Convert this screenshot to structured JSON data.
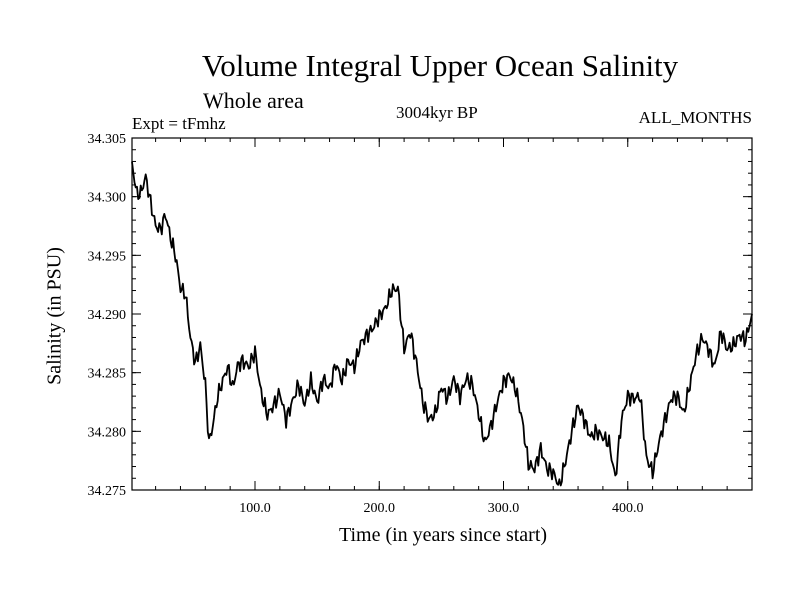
{
  "chart_data": {
    "type": "line",
    "title": "Volume Integral Upper Ocean Salinity",
    "subtitle": "Whole area",
    "info": {
      "experiment": "Expt = tFmhz",
      "period": "3004kyr BP",
      "months": "ALL_MONTHS"
    },
    "xlabel": "Time (in years since start)",
    "ylabel": "Salinity (in PSU)",
    "xlim": [
      1,
      500
    ],
    "ylim": [
      34.275,
      34.305
    ],
    "xticks": [
      100,
      200,
      300,
      400
    ],
    "xtick_labels": [
      "100.0",
      "200.0",
      "300.0",
      "400.0"
    ],
    "yticks": [
      34.275,
      34.28,
      34.285,
      34.29,
      34.295,
      34.3,
      34.305
    ],
    "ytick_labels": [
      "34.275",
      "34.280",
      "34.285",
      "34.290",
      "34.295",
      "34.300",
      "34.305"
    ],
    "series": [
      {
        "name": "Salinity",
        "color": "#000000",
        "x": [
          1,
          5,
          8,
          12,
          16,
          20,
          24,
          28,
          32,
          36,
          40,
          44,
          48,
          52,
          56,
          60,
          63,
          66,
          70,
          74,
          78,
          82,
          86,
          90,
          95,
          100,
          105,
          110,
          115,
          120,
          125,
          130,
          135,
          140,
          145,
          150,
          155,
          160,
          165,
          170,
          175,
          180,
          185,
          190,
          195,
          200,
          205,
          210,
          215,
          220,
          225,
          230,
          235,
          240,
          245,
          250,
          255,
          260,
          265,
          270,
          275,
          280,
          285,
          290,
          295,
          300,
          305,
          310,
          315,
          320,
          325,
          330,
          335,
          340,
          345,
          350,
          355,
          360,
          365,
          370,
          375,
          380,
          385,
          390,
          395,
          400,
          405,
          410,
          415,
          420,
          425,
          430,
          435,
          440,
          445,
          450,
          455,
          460,
          465,
          470,
          475,
          480,
          485,
          490,
          495,
          500
        ],
        "y": [
          34.3028,
          34.3002,
          34.3003,
          34.3017,
          34.2995,
          34.2975,
          34.2972,
          34.2985,
          34.2965,
          34.295,
          34.2922,
          34.2917,
          34.288,
          34.2858,
          34.2873,
          34.284,
          34.279,
          34.2805,
          34.283,
          34.2843,
          34.2855,
          34.2837,
          34.2856,
          34.286,
          34.2855,
          34.2868,
          34.2832,
          34.2814,
          34.2822,
          34.2833,
          34.281,
          34.2825,
          34.284,
          34.2823,
          34.2843,
          34.2825,
          34.2845,
          34.2836,
          34.2858,
          34.2843,
          34.286,
          34.2855,
          34.2875,
          34.2882,
          34.2888,
          34.2898,
          34.2905,
          34.292,
          34.2922,
          34.287,
          34.2885,
          34.2858,
          34.2825,
          34.281,
          34.2815,
          34.2838,
          34.2828,
          34.2845,
          34.283,
          34.2845,
          34.284,
          34.2815,
          34.279,
          34.2805,
          34.2825,
          34.2842,
          34.2848,
          34.2835,
          34.281,
          34.2772,
          34.2768,
          34.2785,
          34.2768,
          34.2765,
          34.2753,
          34.2775,
          34.28,
          34.2822,
          34.281,
          34.2795,
          34.28,
          34.2795,
          34.279,
          34.276,
          34.281,
          34.283,
          34.2828,
          34.283,
          34.2778,
          34.2765,
          34.279,
          34.281,
          34.2828,
          34.283,
          34.2815,
          34.284,
          34.2865,
          34.288,
          34.287,
          34.2855,
          34.2885,
          34.287,
          34.2873,
          34.2882,
          34.2878,
          34.29
        ]
      }
    ]
  }
}
